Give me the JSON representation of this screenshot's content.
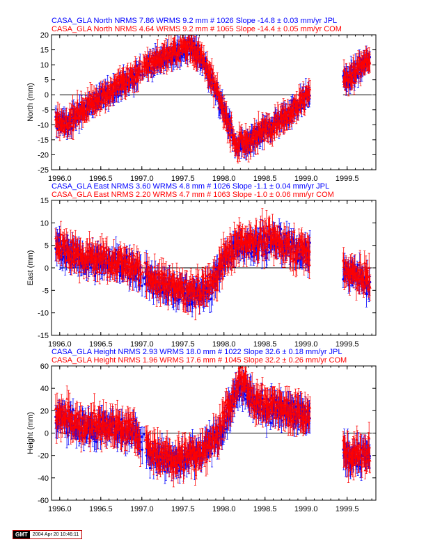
{
  "chart_data": [
    {
      "type": "scatter",
      "title_lines": [
        {
          "text": "CASA_GLA North NRMS 7.86 WRMS  9.2 mm # 1026 Slope  -14.8 ±  0.03 mm/yr JPL",
          "color": "#0000ff"
        },
        {
          "text": "CASA_GLA North NRMS 4.64 WRMS  9.2 mm # 1065 Slope  -14.4 ±  0.05 mm/yr COM",
          "color": "#ff0000"
        }
      ],
      "ylabel": "North (mm)",
      "xlim": [
        1995.9,
        1999.85
      ],
      "ylim": [
        -25,
        20
      ],
      "xticks": [
        "1996.0",
        "1996.5",
        "1997.0",
        "1997.5",
        "1998.0",
        "1998.5",
        "1999.0",
        "1999.5"
      ],
      "xtick_values": [
        1996.0,
        1996.5,
        1997.0,
        1997.5,
        1998.0,
        1998.5,
        1999.0,
        1999.5
      ],
      "yticks": [
        -25,
        -20,
        -15,
        -10,
        -5,
        0,
        5,
        10,
        15,
        20
      ],
      "zero_line": true,
      "series": [
        {
          "name": "JPL",
          "color": "#0000ff",
          "marker": "circle",
          "knots": [
            [
              1996.0,
              -9
            ],
            [
              1996.1,
              -10
            ],
            [
              1996.2,
              -7
            ],
            [
              1996.5,
              -1
            ],
            [
              1996.8,
              4
            ],
            [
              1996.95,
              7
            ],
            [
              1997.1,
              10
            ],
            [
              1997.35,
              13
            ],
            [
              1997.6,
              16
            ],
            [
              1997.75,
              11
            ],
            [
              1997.9,
              1
            ],
            [
              1998.05,
              -9
            ],
            [
              1998.15,
              -18
            ],
            [
              1998.3,
              -16
            ],
            [
              1998.5,
              -12
            ],
            [
              1998.75,
              -7
            ],
            [
              1999.0,
              -1
            ],
            [
              1999.5,
              5
            ],
            [
              1999.75,
              11
            ]
          ],
          "gaps": [
            [
              1999.05,
              1999.45
            ]
          ],
          "noise": 2.2,
          "err": 2.5
        },
        {
          "name": "COM",
          "color": "#ff0000",
          "marker": "triangle",
          "knots": [
            [
              1996.0,
              -8.5
            ],
            [
              1996.1,
              -9.5
            ],
            [
              1996.2,
              -6.5
            ],
            [
              1996.5,
              -0.5
            ],
            [
              1996.8,
              4.5
            ],
            [
              1996.95,
              7.5
            ],
            [
              1997.1,
              10.5
            ],
            [
              1997.35,
              13.5
            ],
            [
              1997.6,
              16.5
            ],
            [
              1997.75,
              11.5
            ],
            [
              1997.9,
              1.5
            ],
            [
              1998.05,
              -8.5
            ],
            [
              1998.15,
              -17.5
            ],
            [
              1998.3,
              -15.5
            ],
            [
              1998.5,
              -11.5
            ],
            [
              1998.75,
              -6.5
            ],
            [
              1999.0,
              -0.5
            ],
            [
              1999.5,
              5.5
            ],
            [
              1999.75,
              11.5
            ]
          ],
          "gaps": [
            [
              1999.05,
              1999.45
            ]
          ],
          "noise": 2.4,
          "err": 2.8
        }
      ]
    },
    {
      "type": "scatter",
      "title_lines": [
        {
          "text": "CASA_GLA East NRMS 3.60 WRMS  4.8 mm # 1026 Slope   -1.1 ±  0.04 mm/yr JPL",
          "color": "#0000ff"
        },
        {
          "text": "CASA_GLA East NRMS 2.20 WRMS  4.7 mm # 1063 Slope   -1.0 ±  0.06 mm/yr COM",
          "color": "#ff0000"
        }
      ],
      "ylabel": "East (mm)",
      "xlim": [
        1995.9,
        1999.85
      ],
      "ylim": [
        -15,
        15
      ],
      "xticks": [
        "1996.0",
        "1996.5",
        "1997.0",
        "1997.5",
        "1998.0",
        "1998.5",
        "1999.0",
        "1999.5"
      ],
      "xtick_values": [
        1996.0,
        1996.5,
        1997.0,
        1997.5,
        1998.0,
        1998.5,
        1999.0,
        1999.5
      ],
      "yticks": [
        -15,
        -10,
        -5,
        0,
        5,
        10,
        15
      ],
      "zero_line": true,
      "series": [
        {
          "name": "JPL",
          "color": "#0000ff",
          "marker": "circle",
          "knots": [
            [
              1996.0,
              4
            ],
            [
              1996.3,
              2
            ],
            [
              1996.6,
              1
            ],
            [
              1996.9,
              0
            ],
            [
              1997.1,
              -3
            ],
            [
              1997.4,
              -5
            ],
            [
              1997.7,
              -6
            ],
            [
              1997.85,
              -4
            ],
            [
              1998.0,
              2
            ],
            [
              1998.2,
              5
            ],
            [
              1998.5,
              6
            ],
            [
              1998.75,
              5
            ],
            [
              1999.0,
              3
            ],
            [
              1999.5,
              -1
            ],
            [
              1999.75,
              -3
            ]
          ],
          "gaps": [
            [
              1999.05,
              1999.45
            ]
          ],
          "noise": 2.0,
          "err": 2.0
        },
        {
          "name": "COM",
          "color": "#ff0000",
          "marker": "triangle",
          "knots": [
            [
              1996.0,
              4.5
            ],
            [
              1996.3,
              2.5
            ],
            [
              1996.6,
              1.5
            ],
            [
              1996.9,
              0.5
            ],
            [
              1997.1,
              -2.5
            ],
            [
              1997.4,
              -4.5
            ],
            [
              1997.7,
              -5.5
            ],
            [
              1997.85,
              -3.5
            ],
            [
              1998.0,
              2.5
            ],
            [
              1998.2,
              5.5
            ],
            [
              1998.5,
              6.5
            ],
            [
              1998.75,
              5.5
            ],
            [
              1999.0,
              3.5
            ],
            [
              1999.5,
              -0.5
            ],
            [
              1999.75,
              -2.5
            ]
          ],
          "gaps": [
            [
              1999.05,
              1999.45
            ]
          ],
          "noise": 2.2,
          "err": 2.3
        }
      ]
    },
    {
      "type": "scatter",
      "title_lines": [
        {
          "text": "CASA_GLA Height NRMS 2.93 WRMS 18.0 mm # 1022 Slope   32.6 ±  0.18 mm/yr JPL",
          "color": "#0000ff"
        },
        {
          "text": "CASA_GLA Height NRMS 1.96 WRMS 17.6 mm # 1045 Slope   32.2 ±  0.26 mm/yr COM",
          "color": "#ff0000"
        }
      ],
      "ylabel": "Height (mm)",
      "xlim": [
        1995.9,
        1999.85
      ],
      "ylim": [
        -60,
        60
      ],
      "xticks": [
        "1996.0",
        "1996.5",
        "1997.0",
        "1997.5",
        "1998.0",
        "1998.5",
        "1999.0",
        "1999.5"
      ],
      "xtick_values": [
        1996.0,
        1996.5,
        1997.0,
        1997.5,
        1998.0,
        1998.5,
        1999.0,
        1999.5
      ],
      "yticks": [
        -60,
        -40,
        -20,
        0,
        20,
        40,
        60
      ],
      "zero_line": true,
      "series": [
        {
          "name": "JPL",
          "color": "#0000ff",
          "marker": "circle",
          "knots": [
            [
              1996.0,
              15
            ],
            [
              1996.3,
              5
            ],
            [
              1996.6,
              5
            ],
            [
              1996.9,
              2
            ],
            [
              1997.1,
              -18
            ],
            [
              1997.4,
              -25
            ],
            [
              1997.7,
              -18
            ],
            [
              1997.9,
              -5
            ],
            [
              1998.1,
              25
            ],
            [
              1998.2,
              45
            ],
            [
              1998.4,
              25
            ],
            [
              1998.7,
              20
            ],
            [
              1999.0,
              15
            ],
            [
              1999.5,
              -20
            ],
            [
              1999.75,
              -20
            ]
          ],
          "gaps": [
            [
              1999.05,
              1999.45
            ]
          ],
          "noise": 8,
          "err": 9
        },
        {
          "name": "COM",
          "color": "#ff0000",
          "marker": "triangle",
          "knots": [
            [
              1996.0,
              16
            ],
            [
              1996.3,
              6
            ],
            [
              1996.6,
              6
            ],
            [
              1996.9,
              3
            ],
            [
              1997.1,
              -17
            ],
            [
              1997.4,
              -24
            ],
            [
              1997.7,
              -17
            ],
            [
              1997.9,
              -4
            ],
            [
              1998.1,
              27
            ],
            [
              1998.2,
              50
            ],
            [
              1998.4,
              27
            ],
            [
              1998.7,
              22
            ],
            [
              1999.0,
              17
            ],
            [
              1999.5,
              -19
            ],
            [
              1999.75,
              -19
            ]
          ],
          "gaps": [
            [
              1999.05,
              1999.45
            ]
          ],
          "noise": 9,
          "err": 10
        }
      ]
    }
  ],
  "footer": {
    "logo": "GMT",
    "timestamp": "2004 Apr 20 10:46:11"
  }
}
